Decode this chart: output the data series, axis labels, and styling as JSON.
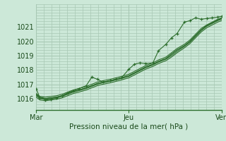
{
  "xlabel": "Pression niveau de la mer( hPa )",
  "bg_color": "#cce8d8",
  "grid_color": "#a8c8b4",
  "line_color": "#2d6e2d",
  "ylim": [
    1015.2,
    1022.6
  ],
  "xlim": [
    0.0,
    1.0
  ],
  "xtick_labels": [
    "Mar",
    "Jeu",
    "Ven"
  ],
  "xtick_pos": [
    0.0,
    0.5,
    1.0
  ],
  "ytick_vals": [
    1016,
    1017,
    1018,
    1019,
    1020,
    1021
  ],
  "lines": [
    {
      "x": [
        0.0,
        0.02,
        0.05,
        0.08,
        0.11,
        0.14,
        0.17,
        0.2,
        0.23,
        0.27,
        0.3,
        0.33,
        0.36,
        0.4,
        0.43,
        0.46,
        0.5,
        0.53,
        0.56,
        0.59,
        0.63,
        0.66,
        0.7,
        0.73,
        0.76,
        0.8,
        0.83,
        0.86,
        0.89,
        0.92,
        0.95,
        0.98,
        1.0
      ],
      "y": [
        1016.3,
        1016.1,
        1016.0,
        1016.05,
        1016.1,
        1016.2,
        1016.35,
        1016.5,
        1016.6,
        1016.75,
        1016.9,
        1017.05,
        1017.15,
        1017.25,
        1017.35,
        1017.45,
        1017.6,
        1017.8,
        1018.0,
        1018.2,
        1018.4,
        1018.6,
        1018.8,
        1019.1,
        1019.4,
        1019.7,
        1020.0,
        1020.4,
        1020.8,
        1021.1,
        1021.3,
        1021.5,
        1021.6
      ]
    },
    {
      "x": [
        0.0,
        0.02,
        0.05,
        0.08,
        0.11,
        0.14,
        0.17,
        0.2,
        0.23,
        0.27,
        0.3,
        0.33,
        0.36,
        0.4,
        0.43,
        0.46,
        0.5,
        0.53,
        0.56,
        0.59,
        0.63,
        0.66,
        0.7,
        0.73,
        0.76,
        0.8,
        0.83,
        0.86,
        0.89,
        0.92,
        0.95,
        0.98,
        1.0
      ],
      "y": [
        1016.2,
        1016.0,
        1015.95,
        1016.0,
        1016.05,
        1016.15,
        1016.3,
        1016.45,
        1016.55,
        1016.7,
        1016.85,
        1017.0,
        1017.1,
        1017.2,
        1017.3,
        1017.4,
        1017.55,
        1017.75,
        1017.95,
        1018.15,
        1018.35,
        1018.55,
        1018.75,
        1019.0,
        1019.3,
        1019.65,
        1019.95,
        1020.35,
        1020.75,
        1021.05,
        1021.25,
        1021.45,
        1021.55
      ]
    },
    {
      "x": [
        0.0,
        0.02,
        0.05,
        0.08,
        0.11,
        0.14,
        0.17,
        0.2,
        0.23,
        0.27,
        0.3,
        0.33,
        0.36,
        0.4,
        0.43,
        0.46,
        0.5,
        0.53,
        0.56,
        0.59,
        0.63,
        0.66,
        0.7,
        0.73,
        0.76,
        0.8,
        0.83,
        0.86,
        0.89,
        0.92,
        0.95,
        0.98,
        1.0
      ],
      "y": [
        1016.1,
        1015.9,
        1015.85,
        1015.9,
        1015.95,
        1016.05,
        1016.2,
        1016.35,
        1016.45,
        1016.6,
        1016.75,
        1016.9,
        1017.0,
        1017.1,
        1017.2,
        1017.3,
        1017.45,
        1017.65,
        1017.85,
        1018.05,
        1018.25,
        1018.45,
        1018.65,
        1018.9,
        1019.2,
        1019.55,
        1019.85,
        1020.25,
        1020.65,
        1020.95,
        1021.15,
        1021.35,
        1021.45
      ]
    },
    {
      "x": [
        0.0,
        0.02,
        0.05,
        0.08,
        0.11,
        0.14,
        0.17,
        0.2,
        0.23,
        0.27,
        0.3,
        0.33,
        0.36,
        0.4,
        0.43,
        0.46,
        0.5,
        0.53,
        0.56,
        0.59,
        0.63,
        0.66,
        0.7,
        0.73,
        0.76,
        0.8,
        0.83,
        0.86,
        0.89,
        0.92,
        0.95,
        0.98,
        1.0
      ],
      "y": [
        1016.35,
        1016.15,
        1016.1,
        1016.15,
        1016.2,
        1016.3,
        1016.45,
        1016.6,
        1016.7,
        1016.85,
        1017.0,
        1017.15,
        1017.25,
        1017.35,
        1017.45,
        1017.55,
        1017.7,
        1017.9,
        1018.1,
        1018.3,
        1018.5,
        1018.7,
        1018.9,
        1019.2,
        1019.5,
        1019.8,
        1020.1,
        1020.5,
        1020.9,
        1021.15,
        1021.35,
        1021.55,
        1021.65
      ]
    },
    {
      "x": [
        0.0,
        0.02,
        0.05,
        0.08,
        0.11,
        0.14,
        0.17,
        0.2,
        0.23,
        0.27,
        0.3,
        0.33,
        0.36,
        0.4,
        0.43,
        0.46,
        0.5,
        0.53,
        0.56,
        0.59,
        0.63,
        0.66,
        0.7,
        0.73,
        0.76,
        0.8,
        0.83,
        0.86,
        0.89,
        0.92,
        0.95,
        0.98,
        1.0
      ],
      "y": [
        1016.25,
        1016.05,
        1016.0,
        1016.05,
        1016.1,
        1016.2,
        1016.35,
        1016.5,
        1016.6,
        1016.75,
        1016.9,
        1017.05,
        1017.15,
        1017.25,
        1017.35,
        1017.45,
        1017.6,
        1017.8,
        1018.0,
        1018.2,
        1018.4,
        1018.6,
        1018.8,
        1019.1,
        1019.4,
        1019.7,
        1020.0,
        1020.4,
        1020.8,
        1021.1,
        1021.3,
        1021.5,
        1021.6
      ]
    }
  ],
  "marker_line": {
    "x": [
      0.0,
      0.02,
      0.05,
      0.08,
      0.11,
      0.14,
      0.17,
      0.2,
      0.23,
      0.27,
      0.3,
      0.33,
      0.36,
      0.4,
      0.43,
      0.46,
      0.5,
      0.53,
      0.56,
      0.59,
      0.63,
      0.66,
      0.7,
      0.73,
      0.76,
      0.8,
      0.83,
      0.86,
      0.89,
      0.92,
      0.95,
      0.98,
      1.0
    ],
    "y": [
      1016.7,
      1016.05,
      1015.9,
      1015.95,
      1016.05,
      1016.2,
      1016.4,
      1016.55,
      1016.7,
      1016.9,
      1017.5,
      1017.35,
      1017.15,
      1017.25,
      1017.35,
      1017.45,
      1018.05,
      1018.4,
      1018.5,
      1018.45,
      1018.5,
      1019.35,
      1019.8,
      1020.25,
      1020.55,
      1021.35,
      1021.45,
      1021.65,
      1021.55,
      1021.6,
      1021.65,
      1021.7,
      1021.75
    ]
  }
}
